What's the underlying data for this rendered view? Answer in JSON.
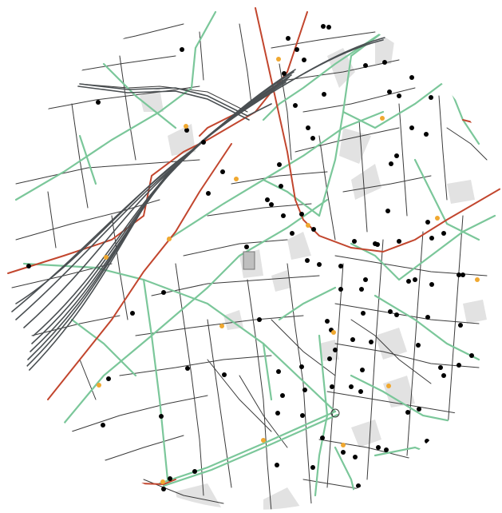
{
  "map": {
    "colors": {
      "background": "#ffffff",
      "street": "#3a3a3a",
      "green_route": "#7bc79a",
      "red_route": "#c2462e",
      "rail": "#4a4f52",
      "block": "#e2e2e2",
      "stop_black": "#000000",
      "stop_orange": "#f0a830"
    },
    "point_types": [
      "black-stop",
      "orange-stop"
    ]
  }
}
